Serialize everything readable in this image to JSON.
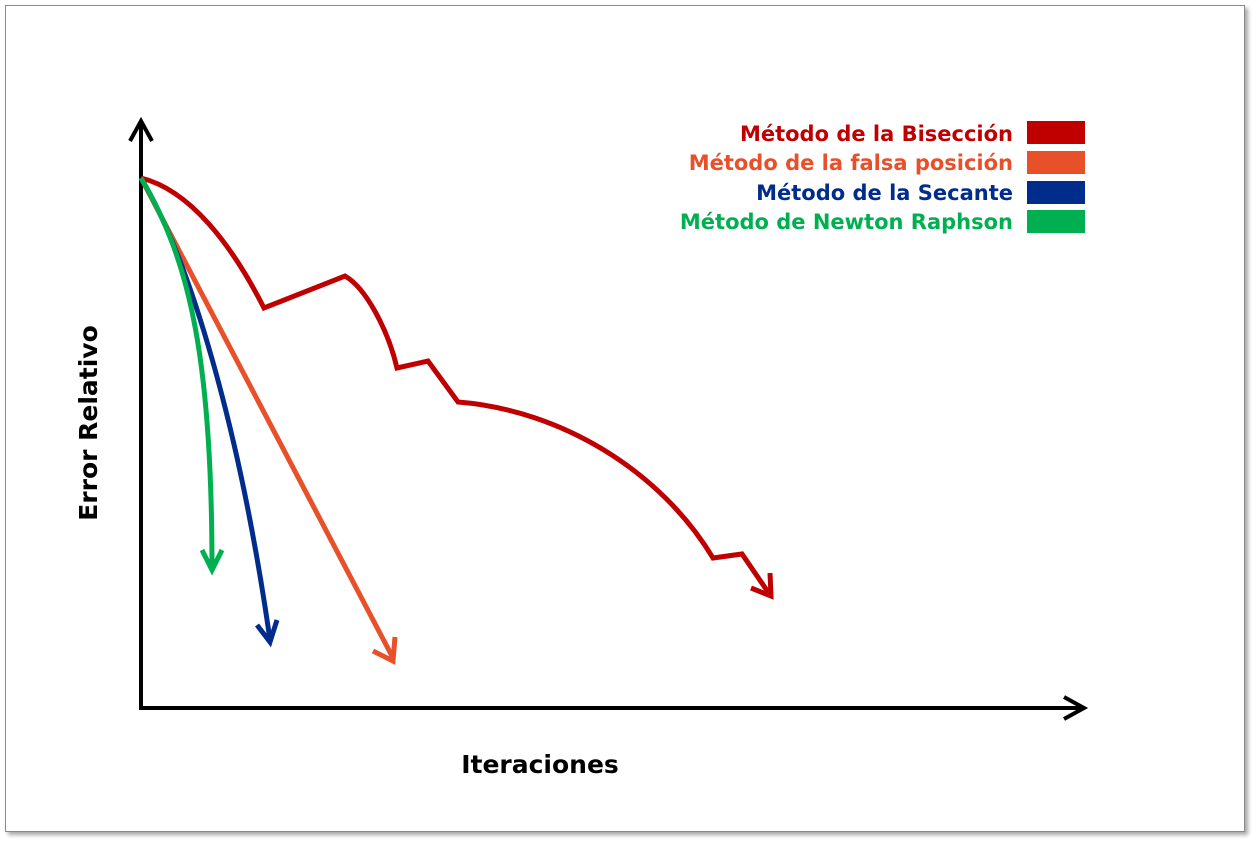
{
  "chart_data": {
    "type": "line",
    "title": "",
    "xlabel": "Iteraciones",
    "ylabel": "Error Relativo",
    "grid": false,
    "legend_position": "top-right",
    "axis_ticks": false,
    "series": [
      {
        "name": "Método de la Bisección",
        "color": "#c00000",
        "shape": "zigzag-curve",
        "x": [
          0,
          0.13,
          0.22,
          0.27,
          0.3,
          0.33,
          0.4,
          0.5,
          0.6,
          0.68,
          0.64,
          0.67
        ],
        "y": [
          1.0,
          0.76,
          0.82,
          0.64,
          0.65,
          0.58,
          0.56,
          0.49,
          0.35,
          0.2,
          0.2,
          0.18
        ],
        "ends_with_arrow": true
      },
      {
        "name": "Método de la falsa posición",
        "color": "#e8502a",
        "shape": "straight",
        "x": [
          0,
          0.27
        ],
        "y": [
          1.0,
          0.08
        ],
        "ends_with_arrow": true
      },
      {
        "name": "Método de la Secante",
        "color": "#002d8c",
        "shape": "convex-curve",
        "x": [
          0,
          0.05,
          0.09,
          0.12,
          0.14
        ],
        "y": [
          1.0,
          0.82,
          0.55,
          0.28,
          0.12
        ],
        "ends_with_arrow": true
      },
      {
        "name": "Método de Newton Raphson",
        "color": "#00b050",
        "shape": "convex-curve",
        "x": [
          0,
          0.04,
          0.065,
          0.077
        ],
        "y": [
          1.0,
          0.78,
          0.5,
          0.26
        ],
        "ends_with_arrow": true
      }
    ]
  }
}
